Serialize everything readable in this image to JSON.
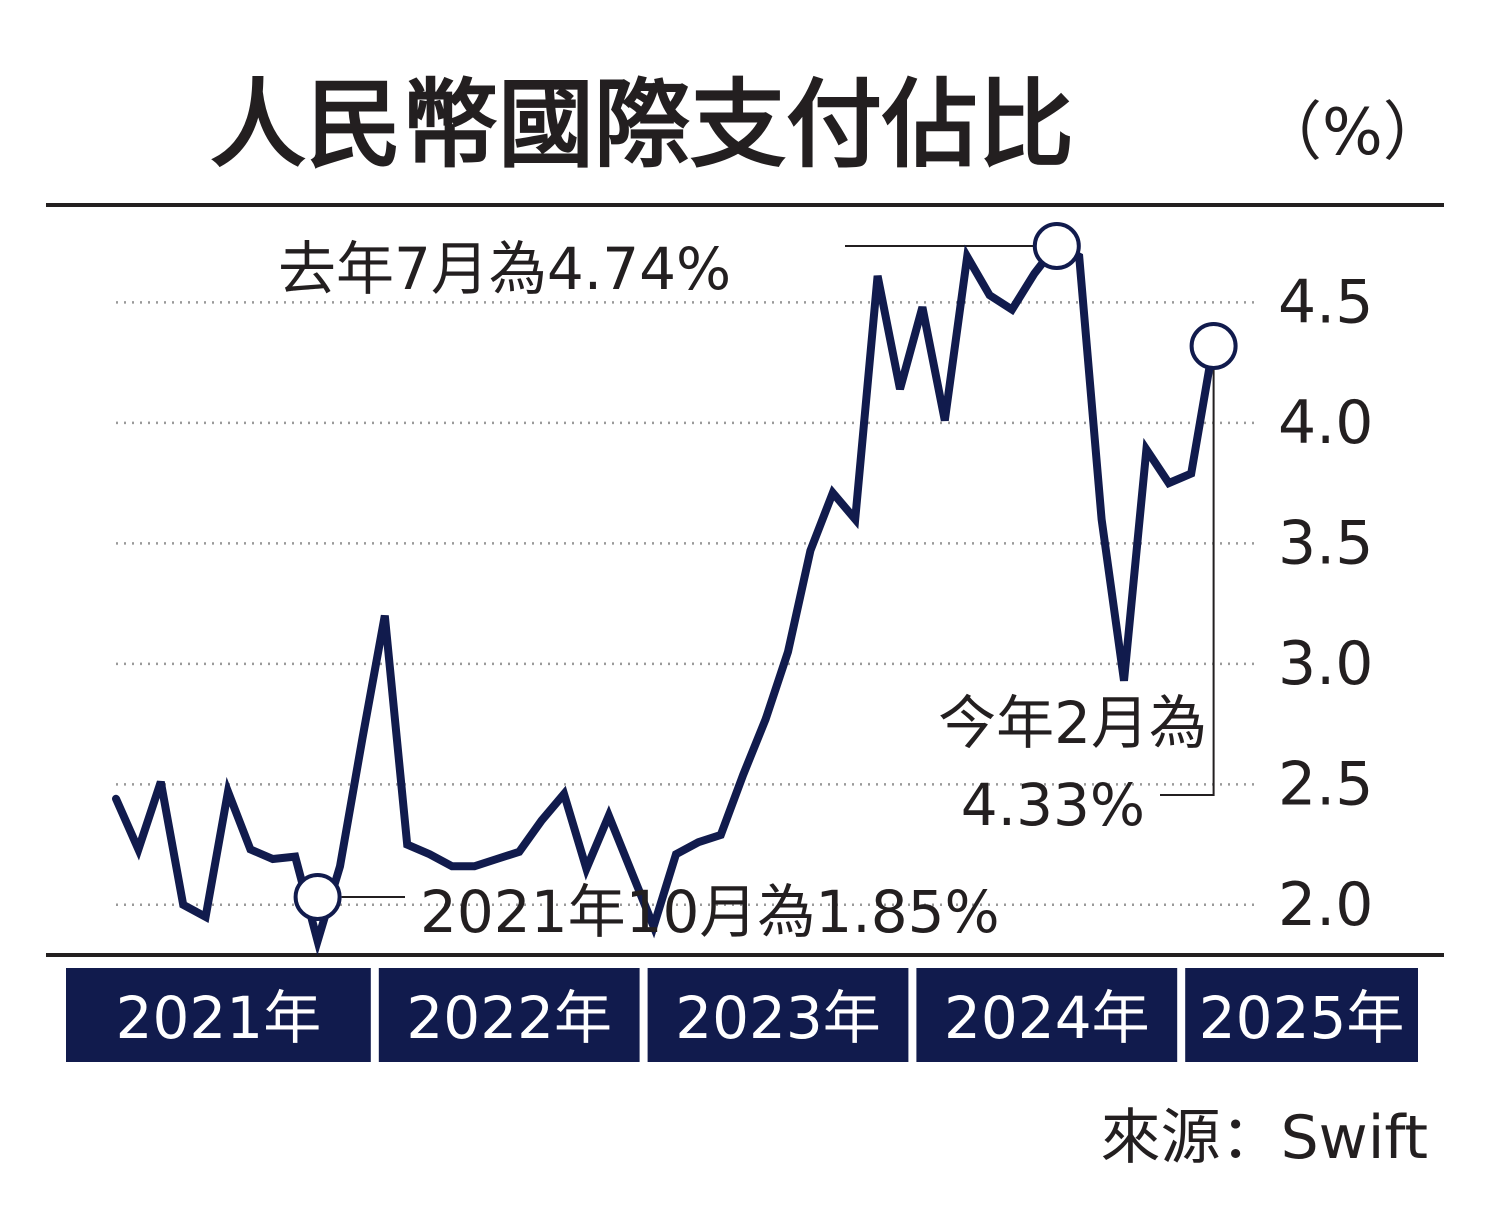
{
  "chart_data": {
    "type": "line",
    "title": "人民幣國際支付佔比",
    "unit_label": "（%）",
    "source": "來源：Swift",
    "ylim": [
      1.8,
      4.9
    ],
    "y_ticks": [
      "4.5",
      "4.0",
      "3.5",
      "3.0",
      "2.5",
      "2.0"
    ],
    "grid": "dotted horizontal",
    "year_labels": [
      "2021年",
      "2022年",
      "2023年",
      "2024年",
      "2025年"
    ],
    "x_start": "2021-01",
    "series": [
      {
        "color": "#111b4d",
        "values": [
          2.44,
          2.23,
          2.51,
          2.0,
          1.95,
          2.47,
          2.23,
          2.19,
          2.2,
          1.85,
          2.16,
          2.69,
          3.2,
          2.25,
          2.21,
          2.16,
          2.16,
          2.19,
          2.22,
          2.35,
          2.46,
          2.15,
          2.37,
          2.14,
          1.91,
          2.21,
          2.26,
          2.29,
          2.54,
          2.77,
          3.05,
          3.47,
          3.71,
          3.6,
          4.61,
          4.14,
          4.48,
          4.01,
          4.69,
          4.53,
          4.47,
          4.62,
          4.74,
          4.69,
          3.6,
          2.93,
          3.89,
          3.75,
          3.79,
          4.33
        ]
      }
    ],
    "annotations": [
      {
        "text": "去年7月為4.74%",
        "x": "2024-07",
        "y": 4.74
      },
      {
        "lines": [
          "今年2月為",
          "4.33%"
        ],
        "x": "2025-02",
        "y": 4.33
      },
      {
        "text": "2021年10月為1.85%",
        "x": "2021-10",
        "y": 1.85
      }
    ],
    "colors": {
      "line": "#111b4d",
      "axis_band": "#111b4d",
      "text": "#231f20",
      "grid": "#9a9a9a"
    }
  }
}
